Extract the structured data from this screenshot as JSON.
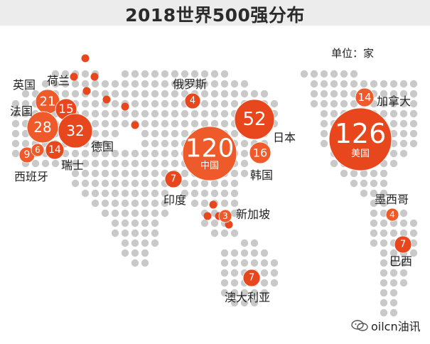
{
  "title": "2018世界500强分布",
  "unit_label": "单位：家",
  "footer": {
    "text": "oilcn油讯",
    "icon": "wechat-icon"
  },
  "colors": {
    "bubble": "#e8471d",
    "bubble_light": "#ef5a2a",
    "dot": "#c9c9c9"
  },
  "countries": [
    {
      "key": "uk",
      "name": "英国",
      "value": 21
    },
    {
      "key": "netherlands",
      "name": "荷兰",
      "value": 15
    },
    {
      "key": "france",
      "name": "法国",
      "value": 28
    },
    {
      "key": "germany",
      "name": "德国",
      "value": 32
    },
    {
      "key": "spain",
      "name": "西班牙",
      "value": 9
    },
    {
      "key": "switzerland",
      "name": "瑞士",
      "value": 14
    },
    {
      "key": "italy",
      "name": "",
      "value": 6
    },
    {
      "key": "russia",
      "name": "俄罗斯",
      "value": 4
    },
    {
      "key": "china",
      "name": "中国",
      "value": 120
    },
    {
      "key": "japan",
      "name": "日本",
      "value": 52
    },
    {
      "key": "korea",
      "name": "韩国",
      "value": 16
    },
    {
      "key": "india",
      "name": "印度",
      "value": 7
    },
    {
      "key": "singapore",
      "name": "新加坡",
      "value": 3
    },
    {
      "key": "australia",
      "name": "澳大利亚",
      "value": 7
    },
    {
      "key": "canada",
      "name": "加拿大",
      "value": 14
    },
    {
      "key": "usa",
      "name": "美国",
      "value": 126
    },
    {
      "key": "mexico",
      "name": "墨西哥",
      "value": 4
    },
    {
      "key": "brazil",
      "name": "巴西",
      "value": 7
    }
  ]
}
